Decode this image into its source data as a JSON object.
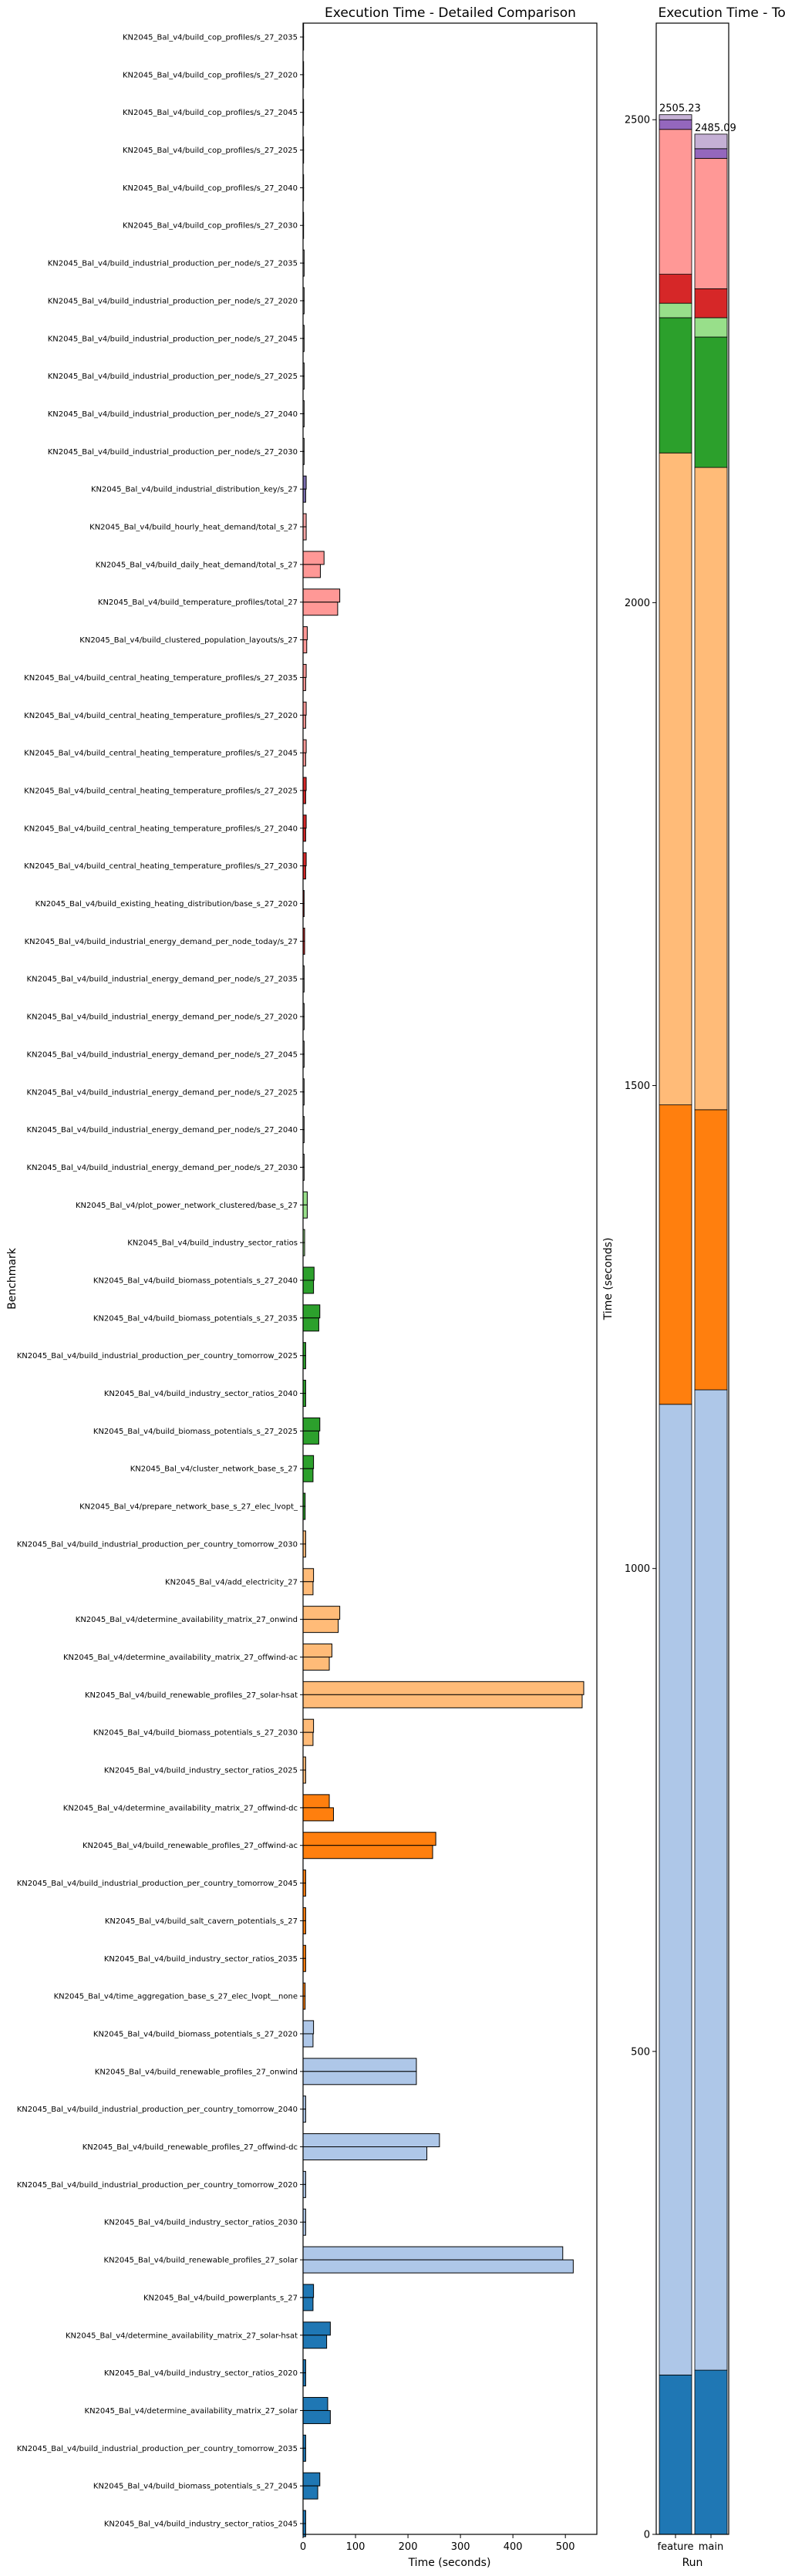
{
  "chart_data": [
    {
      "type": "bar",
      "orientation": "horizontal",
      "title": "Execution Time - Detailed Comparison",
      "xlabel": "Time (seconds)",
      "ylabel": "Benchmark",
      "xlim": [
        0,
        560
      ],
      "xticks": [
        0,
        100,
        200,
        300,
        400,
        500
      ],
      "series": [
        {
          "name": "feature"
        },
        {
          "name": "main"
        }
      ],
      "benchmarks": [
        {
          "label": "KN2045_Bal_v4/build_cop_profiles/s_27_2035",
          "feature": 1,
          "main": 1,
          "color": "#ffffff"
        },
        {
          "label": "KN2045_Bal_v4/build_cop_profiles/s_27_2020",
          "feature": 1,
          "main": 1,
          "color": "#ffffff"
        },
        {
          "label": "KN2045_Bal_v4/build_cop_profiles/s_27_2045",
          "feature": 1,
          "main": 1,
          "color": "#ffffff"
        },
        {
          "label": "KN2045_Bal_v4/build_cop_profiles/s_27_2025",
          "feature": 1,
          "main": 1,
          "color": "#ffffff"
        },
        {
          "label": "KN2045_Bal_v4/build_cop_profiles/s_27_2040",
          "feature": 1,
          "main": 1,
          "color": "#ffffff"
        },
        {
          "label": "KN2045_Bal_v4/build_cop_profiles/s_27_2030",
          "feature": 1,
          "main": 1,
          "color": "#ffffff"
        },
        {
          "label": "KN2045_Bal_v4/build_industrial_production_per_node/s_27_2035",
          "feature": 2,
          "main": 2,
          "color": "#ffffff"
        },
        {
          "label": "KN2045_Bal_v4/build_industrial_production_per_node/s_27_2020",
          "feature": 2,
          "main": 2,
          "color": "#ffffff"
        },
        {
          "label": "KN2045_Bal_v4/build_industrial_production_per_node/s_27_2045",
          "feature": 2,
          "main": 2,
          "color": "#ffffff"
        },
        {
          "label": "KN2045_Bal_v4/build_industrial_production_per_node/s_27_2025",
          "feature": 2,
          "main": 2,
          "color": "#ffffff"
        },
        {
          "label": "KN2045_Bal_v4/build_industrial_production_per_node/s_27_2040",
          "feature": 2,
          "main": 2,
          "color": "#ffffff"
        },
        {
          "label": "KN2045_Bal_v4/build_industrial_production_per_node/s_27_2030",
          "feature": 2,
          "main": 2,
          "color": "#ffffff"
        },
        {
          "label": "KN2045_Bal_v4/build_industrial_distribution_key/s_27",
          "feature": 6,
          "main": 5,
          "color": "#7b6fb0"
        },
        {
          "label": "KN2045_Bal_v4/build_hourly_heat_demand/total_s_27",
          "feature": 6,
          "main": 6,
          "color": "#f7a5a5"
        },
        {
          "label": "KN2045_Bal_v4/build_daily_heat_demand/total_s_27",
          "feature": 40,
          "main": 33,
          "color": "#ff9896"
        },
        {
          "label": "KN2045_Bal_v4/build_temperature_profiles/total_27",
          "feature": 70,
          "main": 66,
          "color": "#ff9896"
        },
        {
          "label": "KN2045_Bal_v4/build_clustered_population_layouts/s_27",
          "feature": 8,
          "main": 7,
          "color": "#ff9896"
        },
        {
          "label": "KN2045_Bal_v4/build_central_heating_temperature_profiles/s_27_2035",
          "feature": 6,
          "main": 5,
          "color": "#ff9896"
        },
        {
          "label": "KN2045_Bal_v4/build_central_heating_temperature_profiles/s_27_2020",
          "feature": 6,
          "main": 5,
          "color": "#ff9896"
        },
        {
          "label": "KN2045_Bal_v4/build_central_heating_temperature_profiles/s_27_2045",
          "feature": 6,
          "main": 5,
          "color": "#ff9896"
        },
        {
          "label": "KN2045_Bal_v4/build_central_heating_temperature_profiles/s_27_2025",
          "feature": 6,
          "main": 5,
          "color": "#d62728"
        },
        {
          "label": "KN2045_Bal_v4/build_central_heating_temperature_profiles/s_27_2040",
          "feature": 6,
          "main": 5,
          "color": "#d62728"
        },
        {
          "label": "KN2045_Bal_v4/build_central_heating_temperature_profiles/s_27_2030",
          "feature": 6,
          "main": 5,
          "color": "#d62728"
        },
        {
          "label": "KN2045_Bal_v4/build_existing_heating_distribution/base_s_27_2020",
          "feature": 2,
          "main": 2,
          "color": "#d62728"
        },
        {
          "label": "KN2045_Bal_v4/build_industrial_energy_demand_per_node_today/s_27",
          "feature": 3,
          "main": 3,
          "color": "#d62728"
        },
        {
          "label": "KN2045_Bal_v4/build_industrial_energy_demand_per_node/s_27_2035",
          "feature": 2,
          "main": 2,
          "color": "#ffffff"
        },
        {
          "label": "KN2045_Bal_v4/build_industrial_energy_demand_per_node/s_27_2020",
          "feature": 2,
          "main": 2,
          "color": "#ffffff"
        },
        {
          "label": "KN2045_Bal_v4/build_industrial_energy_demand_per_node/s_27_2045",
          "feature": 2,
          "main": 2,
          "color": "#ffffff"
        },
        {
          "label": "KN2045_Bal_v4/build_industrial_energy_demand_per_node/s_27_2025",
          "feature": 2,
          "main": 2,
          "color": "#ffffff"
        },
        {
          "label": "KN2045_Bal_v4/build_industrial_energy_demand_per_node/s_27_2040",
          "feature": 2,
          "main": 2,
          "color": "#ffffff"
        },
        {
          "label": "KN2045_Bal_v4/build_industrial_energy_demand_per_node/s_27_2030",
          "feature": 2,
          "main": 2,
          "color": "#ffffff"
        },
        {
          "label": "KN2045_Bal_v4/plot_power_network_clustered/base_s_27",
          "feature": 8,
          "main": 8,
          "color": "#98df8a"
        },
        {
          "label": "KN2045_Bal_v4/build_industry_sector_ratios",
          "feature": 3,
          "main": 3,
          "color": "#98df8a"
        },
        {
          "label": "KN2045_Bal_v4/build_biomass_potentials_s_27_2040",
          "feature": 21,
          "main": 20,
          "color": "#2ca02c"
        },
        {
          "label": "KN2045_Bal_v4/build_biomass_potentials_s_27_2035",
          "feature": 32,
          "main": 30,
          "color": "#2ca02c"
        },
        {
          "label": "KN2045_Bal_v4/build_industrial_production_per_country_tomorrow_2025",
          "feature": 5,
          "main": 5,
          "color": "#2ca02c"
        },
        {
          "label": "KN2045_Bal_v4/build_industry_sector_ratios_2040",
          "feature": 5,
          "main": 5,
          "color": "#2ca02c"
        },
        {
          "label": "KN2045_Bal_v4/build_biomass_potentials_s_27_2025",
          "feature": 32,
          "main": 30,
          "color": "#2ca02c"
        },
        {
          "label": "KN2045_Bal_v4/cluster_network_base_s_27",
          "feature": 20,
          "main": 19,
          "color": "#2ca02c"
        },
        {
          "label": "KN2045_Bal_v4/prepare_network_base_s_27_elec_lvopt_",
          "feature": 4,
          "main": 4,
          "color": "#2ca02c"
        },
        {
          "label": "KN2045_Bal_v4/build_industrial_production_per_country_tomorrow_2030",
          "feature": 5,
          "main": 5,
          "color": "#ffbb78"
        },
        {
          "label": "KN2045_Bal_v4/add_electricity_27",
          "feature": 20,
          "main": 19,
          "color": "#ffbb78"
        },
        {
          "label": "KN2045_Bal_v4/determine_availability_matrix_27_onwind",
          "feature": 70,
          "main": 67,
          "color": "#ffbb78"
        },
        {
          "label": "KN2045_Bal_v4/determine_availability_matrix_27_offwind-ac",
          "feature": 55,
          "main": 50,
          "color": "#ffbb78"
        },
        {
          "label": "KN2045_Bal_v4/build_renewable_profiles_27_solar-hsat",
          "feature": 535,
          "main": 532,
          "color": "#ffbb78"
        },
        {
          "label": "KN2045_Bal_v4/build_biomass_potentials_s_27_2030",
          "feature": 20,
          "main": 19,
          "color": "#ffbb78"
        },
        {
          "label": "KN2045_Bal_v4/build_industry_sector_ratios_2025",
          "feature": 5,
          "main": 5,
          "color": "#ffbb78"
        },
        {
          "label": "KN2045_Bal_v4/determine_availability_matrix_27_offwind-dc",
          "feature": 50,
          "main": 58,
          "color": "#ff7f0e"
        },
        {
          "label": "KN2045_Bal_v4/build_renewable_profiles_27_offwind-ac",
          "feature": 253,
          "main": 247,
          "color": "#ff7f0e"
        },
        {
          "label": "KN2045_Bal_v4/build_industrial_production_per_country_tomorrow_2045",
          "feature": 5,
          "main": 5,
          "color": "#ff7f0e"
        },
        {
          "label": "KN2045_Bal_v4/build_salt_cavern_potentials_s_27",
          "feature": 5,
          "main": 5,
          "color": "#ff7f0e"
        },
        {
          "label": "KN2045_Bal_v4/build_industry_sector_ratios_2035",
          "feature": 5,
          "main": 5,
          "color": "#ff7f0e"
        },
        {
          "label": "KN2045_Bal_v4/time_aggregation_base_s_27_elec_lvopt__none",
          "feature": 4,
          "main": 4,
          "color": "#ff7f0e"
        },
        {
          "label": "KN2045_Bal_v4/build_biomass_potentials_s_27_2020",
          "feature": 20,
          "main": 19,
          "color": "#aec7e8"
        },
        {
          "label": "KN2045_Bal_v4/build_renewable_profiles_27_onwind",
          "feature": 216,
          "main": 216,
          "color": "#aec7e8"
        },
        {
          "label": "KN2045_Bal_v4/build_industrial_production_per_country_tomorrow_2040",
          "feature": 5,
          "main": 5,
          "color": "#aec7e8"
        },
        {
          "label": "KN2045_Bal_v4/build_renewable_profiles_27_offwind-dc",
          "feature": 260,
          "main": 236,
          "color": "#aec7e8"
        },
        {
          "label": "KN2045_Bal_v4/build_industrial_production_per_country_tomorrow_2020",
          "feature": 5,
          "main": 5,
          "color": "#aec7e8"
        },
        {
          "label": "KN2045_Bal_v4/build_industry_sector_ratios_2030",
          "feature": 5,
          "main": 5,
          "color": "#aec7e8"
        },
        {
          "label": "KN2045_Bal_v4/build_renewable_profiles_27_solar",
          "feature": 495,
          "main": 515,
          "color": "#aec7e8"
        },
        {
          "label": "KN2045_Bal_v4/build_powerplants_s_27",
          "feature": 20,
          "main": 19,
          "color": "#1f77b4"
        },
        {
          "label": "KN2045_Bal_v4/determine_availability_matrix_27_solar-hsat",
          "feature": 52,
          "main": 45,
          "color": "#1f77b4"
        },
        {
          "label": "KN2045_Bal_v4/build_industry_sector_ratios_2020",
          "feature": 5,
          "main": 5,
          "color": "#1f77b4"
        },
        {
          "label": "KN2045_Bal_v4/determine_availability_matrix_27_solar",
          "feature": 47,
          "main": 52,
          "color": "#1f77b4"
        },
        {
          "label": "KN2045_Bal_v4/build_industrial_production_per_country_tomorrow_2035",
          "feature": 5,
          "main": 5,
          "color": "#1f77b4"
        },
        {
          "label": "KN2045_Bal_v4/build_biomass_potentials_s_27_2045",
          "feature": 32,
          "main": 28,
          "color": "#1f77b4"
        },
        {
          "label": "KN2045_Bal_v4/build_industry_sector_ratios_2045",
          "feature": 5,
          "main": 5,
          "color": "#1f77b4"
        }
      ]
    },
    {
      "type": "bar",
      "stacked": true,
      "title": "Execution Time - Total",
      "xlabel": "Run",
      "ylabel": "Time (seconds)",
      "ylim": [
        0,
        2600
      ],
      "yticks": [
        0,
        500,
        1000,
        1500,
        2000,
        2500
      ],
      "categories": [
        "feature",
        "main"
      ],
      "totals": [
        2505.23,
        2485.09
      ],
      "total_labels": [
        "2505.23",
        "2485.09"
      ],
      "segments": [
        {
          "color": "#1f77b4",
          "feature": 165,
          "main": 170
        },
        {
          "color": "#aec7e8",
          "feature": 1005,
          "main": 1015
        },
        {
          "color": "#ff7f0e",
          "feature": 310,
          "main": 290
        },
        {
          "color": "#ffbb78",
          "feature": 675,
          "main": 665
        },
        {
          "color": "#2ca02c",
          "feature": 140,
          "main": 135
        },
        {
          "color": "#98df8a",
          "feature": 15,
          "main": 20
        },
        {
          "color": "#d62728",
          "feature": 30,
          "main": 30
        },
        {
          "color": "#ff9896",
          "feature": 150,
          "main": 135
        },
        {
          "color": "#9467bd",
          "feature": 10,
          "main": 10
        },
        {
          "color": "#c5b0d5",
          "feature": 5.23,
          "main": 15.09
        }
      ]
    }
  ]
}
